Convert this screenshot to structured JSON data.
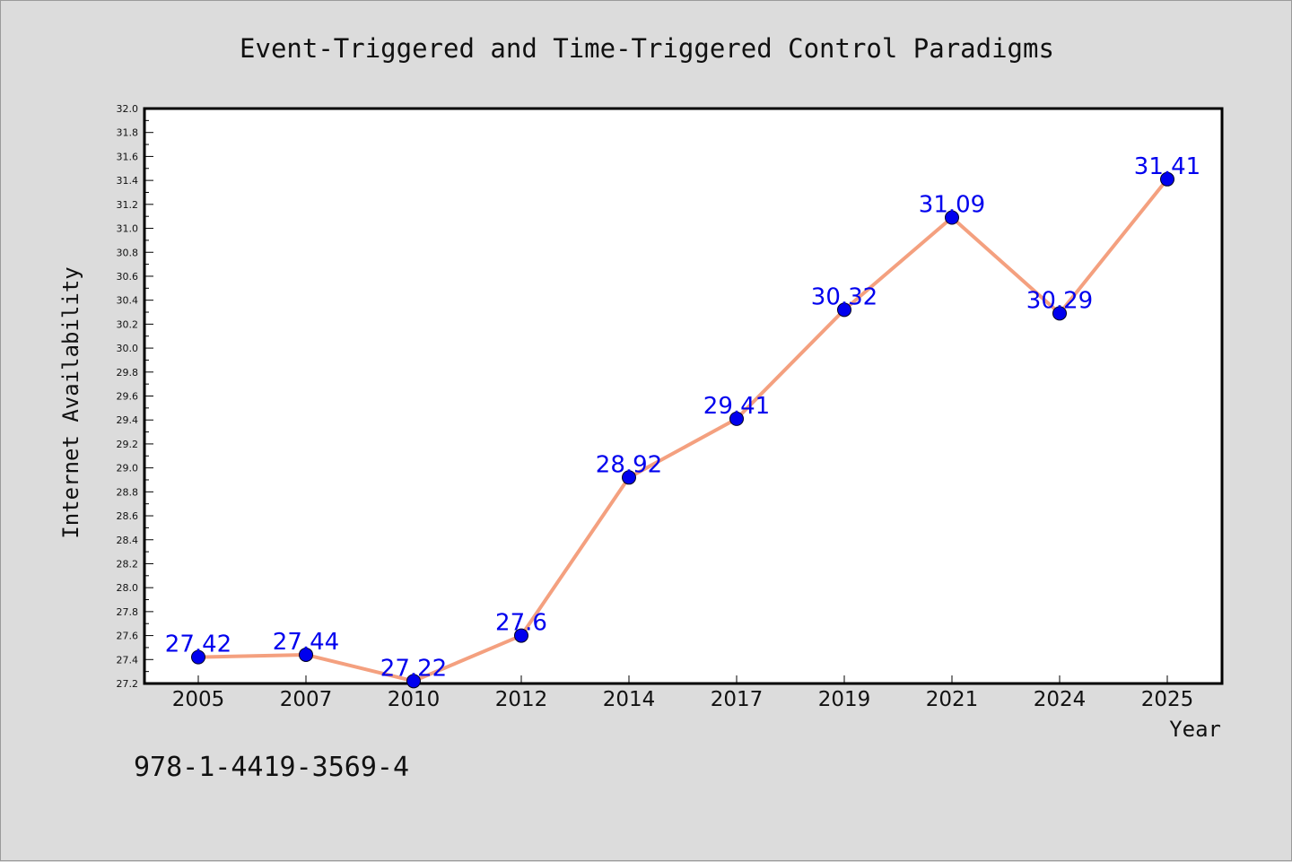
{
  "chart_data": {
    "type": "line",
    "title": "Event-Triggered and Time-Triggered Control Paradigms",
    "xlabel": "Year",
    "ylabel": "Internet Availability",
    "categories": [
      "2005",
      "2007",
      "2010",
      "2012",
      "2014",
      "2017",
      "2019",
      "2021",
      "2024",
      "2025"
    ],
    "series": [
      {
        "values": [
          27.42,
          27.44,
          27.22,
          27.6,
          28.92,
          29.41,
          30.32,
          31.09,
          30.29,
          31.41
        ],
        "labels": [
          "27.42",
          "27.44",
          "27.22",
          "27.6",
          "28.92",
          "29.41",
          "30.32",
          "31.09",
          "30.29",
          "31.41"
        ]
      }
    ],
    "ylim": [
      27.2,
      32.0
    ],
    "yticks": [
      "27.2",
      "27.4",
      "27.6",
      "27.8",
      "28.0",
      "28.2",
      "28.4",
      "28.6",
      "28.8",
      "29.0",
      "29.2",
      "29.4",
      "29.6",
      "29.8",
      "30.0",
      "30.2",
      "30.4",
      "30.6",
      "30.8",
      "31.0",
      "31.2",
      "31.4",
      "31.6",
      "31.8",
      "32.0"
    ],
    "grid": false,
    "legend": "none",
    "line_color": "#f4a07f",
    "marker_color": "#0000ee",
    "label_color": "#0000ee",
    "background_color": "#dcdcdc",
    "plot_background_color": "#ffffff"
  },
  "footer": {
    "isbn": "978-1-4419-3569-4"
  }
}
